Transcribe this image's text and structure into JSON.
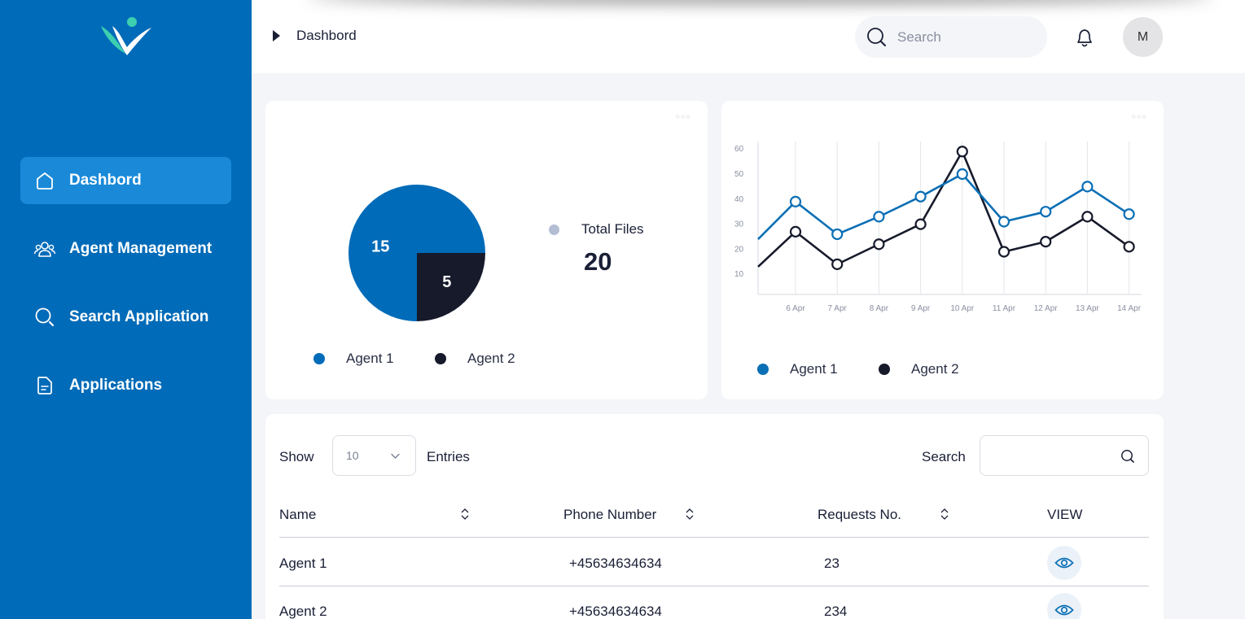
{
  "sidebar": {
    "items": [
      {
        "label": "Dashbord",
        "icon": "home-icon"
      },
      {
        "label": "Agent Management",
        "icon": "users-icon"
      },
      {
        "label": "Search Application",
        "icon": "search-icon"
      },
      {
        "label": "Applications",
        "icon": "file-icon"
      }
    ]
  },
  "header": {
    "breadcrumb": "Dashbord",
    "search_placeholder": "Search",
    "avatar_initial": "M"
  },
  "summary": {
    "total_label": "Total Files",
    "total_value": "20"
  },
  "chart_data": [
    {
      "type": "pie",
      "labels": [
        "Agent 1",
        "Agent 2"
      ],
      "values": [
        15,
        5
      ],
      "value_labels": [
        "15",
        "5"
      ],
      "colors": [
        "#006bb8",
        "#161a2b"
      ],
      "legend": [
        "Agent 1",
        "Agent 2"
      ]
    },
    {
      "type": "line",
      "x": [
        "6 Apr",
        "7 Apr",
        "8 Apr",
        "9 Apr",
        "10 Apr",
        "11 Apr",
        "12 Apr",
        "13 Apr",
        "14 Apr"
      ],
      "yticks": [
        "60",
        "50",
        "40",
        "30",
        "20",
        "10"
      ],
      "ylim": [
        0,
        60
      ],
      "grid": true,
      "series": [
        {
          "name": "Agent 1",
          "color": "#0b6fb5",
          "start": 24,
          "values": [
            39,
            26,
            33,
            41,
            50,
            31,
            35,
            45,
            34
          ]
        },
        {
          "name": "Agent 2",
          "color": "#161a2b",
          "start": 13,
          "values": [
            27,
            14,
            22,
            30,
            59,
            19,
            23,
            33,
            21
          ]
        }
      ]
    }
  ],
  "table": {
    "show_label": "Show",
    "entries_value": "10",
    "entries_label": "Entries",
    "search_label": "Search",
    "columns": [
      "Name",
      "Phone Number",
      "Requests No.",
      "VIEW"
    ],
    "rows": [
      {
        "name": "Agent 1",
        "phone": "+45634634634",
        "requests": "23"
      },
      {
        "name": "Agent 2",
        "phone": "+45634634634",
        "requests": "234"
      }
    ]
  }
}
